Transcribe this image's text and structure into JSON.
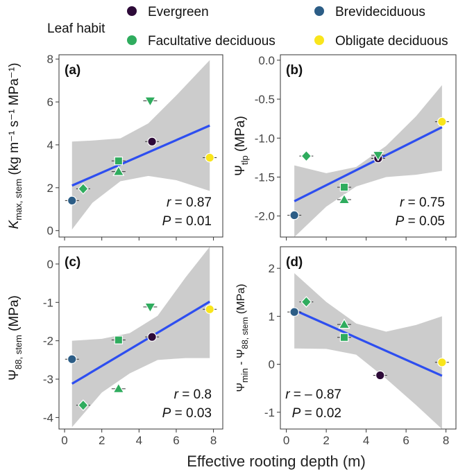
{
  "legend": {
    "title": "Leaf habit",
    "items": [
      {
        "label": "Evergreen",
        "color": "#2d0a38"
      },
      {
        "label": "Brevideciduous",
        "color": "#2c5d86"
      },
      {
        "label": "Facultative deciduous",
        "color": "#2fac5e"
      },
      {
        "label": "Obligate deciduous",
        "color": "#f9e51c"
      }
    ]
  },
  "xlabel": "Effective rooting depth (m)",
  "regression_color": "#2d4ef0",
  "band_color": "#cccccc",
  "chart_data": [
    {
      "panel": "(a)",
      "type": "scatter",
      "ylabel_main": "K",
      "ylabel_sub": "max, stem",
      "ylabel_unit": "(kg m⁻¹ s⁻¹ MPa⁻¹)",
      "xlim": [
        -0.3,
        8.5
      ],
      "ylim": [
        -0.3,
        8.2
      ],
      "xticks": [
        "0",
        "2",
        "4",
        "6",
        "8"
      ],
      "yticks": [
        "0",
        "2",
        "4",
        "6",
        "8"
      ],
      "stat_r": "r = 0.87",
      "stat_p": "P = 0.01",
      "points": [
        {
          "habit": "Brevideciduous",
          "shape": "circle",
          "x": 0.4,
          "y": 1.4
        },
        {
          "habit": "Facultative deciduous",
          "shape": "diamond",
          "x": 1.0,
          "y": 1.95
        },
        {
          "habit": "Facultative deciduous",
          "shape": "square",
          "x": 2.9,
          "y": 3.25
        },
        {
          "habit": "Facultative deciduous",
          "shape": "triangle-up",
          "x": 2.9,
          "y": 2.75
        },
        {
          "habit": "Evergreen",
          "shape": "circle",
          "x": 4.7,
          "y": 4.15
        },
        {
          "habit": "Facultative deciduous",
          "shape": "triangle-down",
          "x": 4.6,
          "y": 6.05
        },
        {
          "habit": "Obligate deciduous",
          "shape": "circle",
          "x": 7.8,
          "y": 3.4
        }
      ],
      "fit": {
        "x": [
          0.4,
          7.8
        ],
        "y": [
          2.1,
          4.9
        ]
      },
      "band_upper": [
        [
          0.4,
          4.15
        ],
        [
          1.5,
          4.2
        ],
        [
          3.0,
          4.3
        ],
        [
          4.5,
          5.0
        ],
        [
          6.0,
          6.3
        ],
        [
          7.8,
          7.95
        ]
      ],
      "band_lower": [
        [
          0.4,
          0.05
        ],
        [
          1.5,
          1.3
        ],
        [
          3.0,
          2.3
        ],
        [
          4.5,
          2.55
        ],
        [
          6.0,
          2.35
        ],
        [
          7.8,
          1.85
        ]
      ]
    },
    {
      "panel": "(b)",
      "type": "scatter",
      "ylabel_main": "Ψ",
      "ylabel_sub": "tlp",
      "ylabel_unit": "(MPa)",
      "xlim": [
        -0.3,
        8.5
      ],
      "ylim": [
        -2.27,
        0.07
      ],
      "xticks": [
        "0",
        "2",
        "4",
        "6",
        "8"
      ],
      "yticks": [
        "0.0",
        "-0.5",
        "-1.0",
        "-1.5",
        "-2.0"
      ],
      "ytick_values": [
        0.0,
        -0.5,
        -1.0,
        -1.5,
        -2.0
      ],
      "stat_r": "r = 0.75",
      "stat_p": "P = 0.05",
      "points": [
        {
          "habit": "Brevideciduous",
          "shape": "circle",
          "x": 0.4,
          "y": -1.99
        },
        {
          "habit": "Facultative deciduous",
          "shape": "diamond",
          "x": 1.0,
          "y": -1.23
        },
        {
          "habit": "Facultative deciduous",
          "shape": "square",
          "x": 2.9,
          "y": -1.63
        },
        {
          "habit": "Facultative deciduous",
          "shape": "triangle-up",
          "x": 2.9,
          "y": -1.79
        },
        {
          "habit": "Evergreen",
          "shape": "circle",
          "x": 4.6,
          "y": -1.26
        },
        {
          "habit": "Facultative deciduous",
          "shape": "triangle-down",
          "x": 4.6,
          "y": -1.22
        },
        {
          "habit": "Obligate deciduous",
          "shape": "circle",
          "x": 7.8,
          "y": -0.79
        }
      ],
      "fit": {
        "x": [
          0.4,
          7.8
        ],
        "y": [
          -1.81,
          -0.86
        ]
      },
      "band_upper": [
        [
          0.4,
          -1.35
        ],
        [
          2.0,
          -1.45
        ],
        [
          3.5,
          -1.37
        ],
        [
          5.0,
          -1.1
        ],
        [
          6.5,
          -0.72
        ],
        [
          7.8,
          -0.32
        ]
      ],
      "band_lower": [
        [
          0.4,
          -2.27
        ],
        [
          2.0,
          -1.88
        ],
        [
          3.5,
          -1.62
        ],
        [
          5.0,
          -1.5
        ],
        [
          6.5,
          -1.47
        ],
        [
          7.8,
          -1.42
        ]
      ]
    },
    {
      "panel": "(c)",
      "type": "scatter",
      "ylabel_main": "Ψ",
      "ylabel_sub": "88, stem",
      "ylabel_unit": "(MPa)",
      "xlim": [
        -0.3,
        8.5
      ],
      "ylim": [
        -4.3,
        0.45
      ],
      "xticks": [
        "0",
        "2",
        "4",
        "6",
        "8"
      ],
      "yticks": [
        "0",
        "-1",
        "-2",
        "-3",
        "-4"
      ],
      "stat_r": "r = 0.8",
      "stat_p": "P = 0.03",
      "points": [
        {
          "habit": "Brevideciduous",
          "shape": "circle",
          "x": 0.4,
          "y": -2.48
        },
        {
          "habit": "Facultative deciduous",
          "shape": "diamond",
          "x": 1.0,
          "y": -3.68
        },
        {
          "habit": "Facultative deciduous",
          "shape": "square",
          "x": 2.9,
          "y": -1.98
        },
        {
          "habit": "Facultative deciduous",
          "shape": "triangle-up",
          "x": 2.9,
          "y": -3.25
        },
        {
          "habit": "Evergreen",
          "shape": "circle",
          "x": 4.7,
          "y": -1.9
        },
        {
          "habit": "Facultative deciduous",
          "shape": "triangle-down",
          "x": 4.6,
          "y": -1.12
        },
        {
          "habit": "Obligate deciduous",
          "shape": "circle",
          "x": 7.8,
          "y": -1.18
        }
      ],
      "fit": {
        "x": [
          0.4,
          7.8
        ],
        "y": [
          -3.12,
          -0.98
        ]
      },
      "band_upper": [
        [
          0.4,
          -2.0
        ],
        [
          2.0,
          -1.95
        ],
        [
          3.5,
          -1.8
        ],
        [
          5.0,
          -1.35
        ],
        [
          6.5,
          -0.35
        ],
        [
          7.8,
          0.45
        ]
      ],
      "band_lower": [
        [
          0.4,
          -4.25
        ],
        [
          2.0,
          -3.35
        ],
        [
          3.5,
          -2.85
        ],
        [
          5.0,
          -2.5
        ],
        [
          6.5,
          -2.45
        ],
        [
          7.8,
          -2.45
        ]
      ]
    },
    {
      "panel": "(d)",
      "type": "scatter",
      "ylabel_main": "Ψ",
      "ylabel_sub": "min",
      "ylabel_mid": " - Ψ",
      "ylabel_sub2": "88, stem",
      "ylabel_unit": "(MPa)",
      "xlim": [
        -0.3,
        8.5
      ],
      "ylim": [
        -1.35,
        2.45
      ],
      "xticks": [
        "0",
        "2",
        "4",
        "6",
        "8"
      ],
      "yticks": [
        "2",
        "1",
        "0",
        "-1"
      ],
      "stat_r": "r = – 0.87",
      "stat_p": "P = 0.02",
      "points": [
        {
          "habit": "Brevideciduous",
          "shape": "circle",
          "x": 0.4,
          "y": 1.09
        },
        {
          "habit": "Facultative deciduous",
          "shape": "diamond",
          "x": 1.0,
          "y": 1.3
        },
        {
          "habit": "Facultative deciduous",
          "shape": "triangle-up",
          "x": 2.9,
          "y": 0.83
        },
        {
          "habit": "Facultative deciduous",
          "shape": "square",
          "x": 2.9,
          "y": 0.56
        },
        {
          "habit": "Evergreen",
          "shape": "circle",
          "x": 4.7,
          "y": -0.23
        },
        {
          "habit": "Obligate deciduous",
          "shape": "circle",
          "x": 7.8,
          "y": 0.04
        }
      ],
      "fit": {
        "x": [
          0.4,
          7.8
        ],
        "y": [
          1.13,
          -0.24
        ]
      },
      "band_upper": [
        [
          0.4,
          1.9
        ],
        [
          2.0,
          1.3
        ],
        [
          3.5,
          0.85
        ],
        [
          5.0,
          0.68
        ],
        [
          6.5,
          0.82
        ],
        [
          7.8,
          1.0
        ]
      ],
      "band_lower": [
        [
          0.4,
          0.33
        ],
        [
          2.0,
          0.32
        ],
        [
          3.5,
          0.2
        ],
        [
          5.0,
          -0.3
        ],
        [
          6.5,
          -0.85
        ],
        [
          7.8,
          -1.35
        ]
      ]
    }
  ]
}
